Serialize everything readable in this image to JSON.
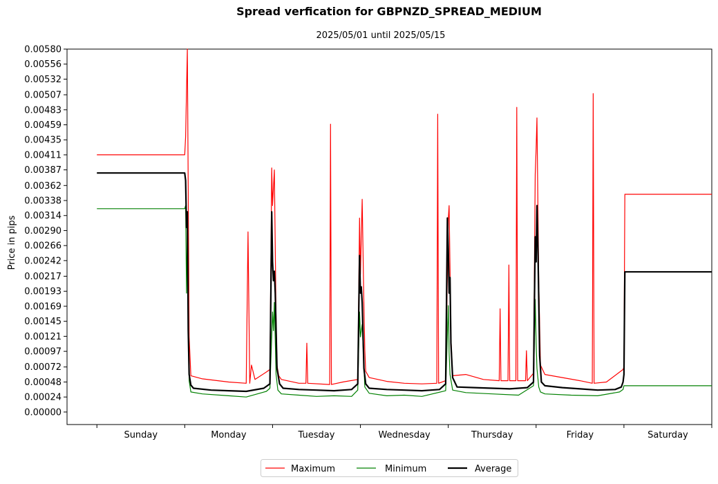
{
  "chart_data": {
    "type": "line",
    "title": "Spread verfication for GBPNZD_SPREAD_MEDIUM",
    "subtitle": "2025/05/01 until 2025/05/15",
    "ylabel": "Price in pips",
    "xlabel": "",
    "ylim": [
      -0.0002,
      0.0058
    ],
    "xlim": [
      -0.34,
      7.0
    ],
    "grid": false,
    "legend_position": "bottom-center",
    "categories": [
      "Sunday",
      "Monday",
      "Tuesday",
      "Wednesday",
      "Thursday",
      "Friday",
      "Saturday"
    ],
    "yticks": [
      "0.00000",
      "0.00024",
      "0.00048",
      "0.00072",
      "0.00097",
      "0.00121",
      "0.00145",
      "0.00169",
      "0.00193",
      "0.00217",
      "0.00242",
      "0.00266",
      "0.00290",
      "0.00314",
      "0.00338",
      "0.00362",
      "0.00387",
      "0.00411",
      "0.00435",
      "0.00459",
      "0.00483",
      "0.00507",
      "0.00532",
      "0.00556",
      "0.00580"
    ],
    "series": [
      {
        "name": "Maximum",
        "color": "#ff0000",
        "width": 1.2,
        "x": [
          0.0,
          1.0,
          1.01,
          1.03,
          1.05,
          1.07,
          1.2,
          1.5,
          1.7,
          1.72,
          1.74,
          1.76,
          1.8,
          1.93,
          1.97,
          1.99,
          2.0,
          2.02,
          2.04,
          2.05,
          2.07,
          2.1,
          2.3,
          2.38,
          2.39,
          2.4,
          2.65,
          2.66,
          2.67,
          2.8,
          2.97,
          2.99,
          3.0,
          3.02,
          3.04,
          3.05,
          3.06,
          3.1,
          3.3,
          3.5,
          3.7,
          3.87,
          3.88,
          3.89,
          3.97,
          4.0,
          4.01,
          4.02,
          4.03,
          4.05,
          4.2,
          4.4,
          4.58,
          4.59,
          4.6,
          4.68,
          4.69,
          4.7,
          4.77,
          4.78,
          4.79,
          4.88,
          4.89,
          4.9,
          4.97,
          4.99,
          5.0,
          5.01,
          5.03,
          5.05,
          5.1,
          5.3,
          5.5,
          5.64,
          5.65,
          5.66,
          5.8,
          5.99,
          6.0,
          6.01,
          7.0
        ],
        "y": [
          0.00411,
          0.00411,
          0.0044,
          0.0058,
          0.0012,
          0.00058,
          0.00053,
          0.00048,
          0.00046,
          0.00288,
          0.00046,
          0.00075,
          0.00052,
          0.00064,
          0.00068,
          0.0039,
          0.0033,
          0.00387,
          0.0015,
          0.00075,
          0.00058,
          0.00052,
          0.00046,
          0.00046,
          0.0011,
          0.00046,
          0.00044,
          0.0046,
          0.00044,
          0.00048,
          0.00052,
          0.0031,
          0.0022,
          0.0034,
          0.0017,
          0.001,
          0.00065,
          0.00055,
          0.00049,
          0.00046,
          0.00045,
          0.00046,
          0.00476,
          0.00046,
          0.0005,
          0.00308,
          0.0033,
          0.0023,
          0.0012,
          0.00058,
          0.0006,
          0.00052,
          0.0005,
          0.00165,
          0.0005,
          0.0005,
          0.00235,
          0.0005,
          0.0005,
          0.00487,
          0.0005,
          0.0005,
          0.00098,
          0.0005,
          0.00062,
          0.0038,
          0.0042,
          0.0047,
          0.0021,
          0.00075,
          0.0006,
          0.00055,
          0.0005,
          0.00046,
          0.00509,
          0.00046,
          0.00048,
          0.00068,
          0.00072,
          0.00348,
          0.00348
        ]
      },
      {
        "name": "Minimum",
        "color": "#008000",
        "width": 1.2,
        "x": [
          0.0,
          1.0,
          1.01,
          1.02,
          1.03,
          1.05,
          1.07,
          1.2,
          1.5,
          1.7,
          1.93,
          1.97,
          2.0,
          2.01,
          2.02,
          2.04,
          2.06,
          2.1,
          2.3,
          2.5,
          2.7,
          2.9,
          2.97,
          2.99,
          3.0,
          3.02,
          3.05,
          3.1,
          3.3,
          3.5,
          3.7,
          3.97,
          4.0,
          4.01,
          4.02,
          4.05,
          4.2,
          4.5,
          4.8,
          4.97,
          4.99,
          5.0,
          5.01,
          5.03,
          5.05,
          5.1,
          5.4,
          5.7,
          5.95,
          5.99,
          6.0,
          6.01,
          7.0
        ],
        "y": [
          0.00325,
          0.00325,
          0.0033,
          0.0019,
          0.0029,
          0.0005,
          0.00032,
          0.00029,
          0.00026,
          0.00024,
          0.00033,
          0.00038,
          0.0016,
          0.0013,
          0.00175,
          0.0006,
          0.00035,
          0.00029,
          0.00027,
          0.00025,
          0.00026,
          0.00025,
          0.00035,
          0.0016,
          0.0012,
          0.0014,
          0.0004,
          0.0003,
          0.00026,
          0.00027,
          0.00025,
          0.00034,
          0.0017,
          0.00095,
          0.0006,
          0.00035,
          0.00031,
          0.00029,
          0.00027,
          0.00042,
          0.0018,
          0.0011,
          0.0007,
          0.0004,
          0.00032,
          0.00029,
          0.00027,
          0.00026,
          0.00032,
          0.00036,
          0.00042,
          0.00042,
          0.00042
        ]
      },
      {
        "name": "Average",
        "color": "#000000",
        "width": 2.2,
        "x": [
          0.0,
          1.0,
          1.01,
          1.02,
          1.03,
          1.04,
          1.05,
          1.07,
          1.1,
          1.3,
          1.5,
          1.7,
          1.9,
          1.97,
          1.99,
          2.0,
          2.01,
          2.02,
          2.03,
          2.05,
          2.08,
          2.12,
          2.3,
          2.5,
          2.7,
          2.9,
          2.97,
          2.99,
          3.0,
          3.01,
          3.02,
          3.04,
          3.06,
          3.1,
          3.3,
          3.5,
          3.7,
          3.9,
          3.97,
          3.99,
          4.0,
          4.01,
          4.02,
          4.03,
          4.05,
          4.1,
          4.3,
          4.5,
          4.7,
          4.9,
          4.97,
          4.99,
          5.0,
          5.01,
          5.02,
          5.04,
          5.06,
          5.1,
          5.3,
          5.5,
          5.7,
          5.9,
          5.97,
          5.99,
          6.0,
          6.01,
          7.0
        ],
        "y": [
          0.00382,
          0.00382,
          0.0037,
          0.00295,
          0.0032,
          0.0013,
          0.0006,
          0.00043,
          0.00038,
          0.00035,
          0.00034,
          0.00033,
          0.00038,
          0.00045,
          0.0032,
          0.0024,
          0.0021,
          0.00225,
          0.0019,
          0.0007,
          0.00045,
          0.00038,
          0.00036,
          0.00035,
          0.00034,
          0.00036,
          0.00045,
          0.0025,
          0.0019,
          0.002,
          0.00175,
          0.0007,
          0.00045,
          0.00038,
          0.00036,
          0.00035,
          0.00034,
          0.00036,
          0.00045,
          0.0031,
          0.0026,
          0.0019,
          0.00215,
          0.0011,
          0.00055,
          0.0004,
          0.00039,
          0.00038,
          0.00037,
          0.00039,
          0.00048,
          0.0028,
          0.0024,
          0.0033,
          0.0027,
          0.0009,
          0.00048,
          0.00042,
          0.00039,
          0.00037,
          0.00035,
          0.00036,
          0.0004,
          0.00048,
          0.0006,
          0.00224,
          0.00224
        ]
      }
    ]
  }
}
